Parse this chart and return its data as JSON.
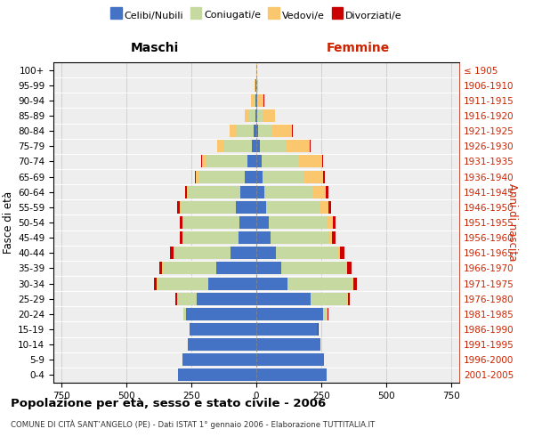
{
  "age_groups": [
    "0-4",
    "5-9",
    "10-14",
    "15-19",
    "20-24",
    "25-29",
    "30-34",
    "35-39",
    "40-44",
    "45-49",
    "50-54",
    "55-59",
    "60-64",
    "65-69",
    "70-74",
    "75-79",
    "80-84",
    "85-89",
    "90-94",
    "95-99",
    "100+"
  ],
  "birth_years": [
    "2001-2005",
    "1996-2000",
    "1991-1995",
    "1986-1990",
    "1981-1985",
    "1976-1980",
    "1971-1975",
    "1966-1970",
    "1961-1965",
    "1956-1960",
    "1951-1955",
    "1946-1950",
    "1941-1945",
    "1936-1940",
    "1931-1935",
    "1926-1930",
    "1921-1925",
    "1916-1920",
    "1911-1915",
    "1906-1910",
    "≤ 1905"
  ],
  "male_celibi": [
    300,
    285,
    265,
    255,
    270,
    230,
    185,
    155,
    100,
    70,
    65,
    80,
    60,
    45,
    35,
    18,
    10,
    5,
    3,
    2,
    1
  ],
  "male_coniugati": [
    0,
    0,
    0,
    2,
    10,
    75,
    195,
    205,
    215,
    210,
    215,
    210,
    200,
    175,
    155,
    110,
    65,
    22,
    8,
    2,
    0
  ],
  "male_vedovi": [
    0,
    0,
    0,
    0,
    0,
    0,
    2,
    2,
    2,
    3,
    4,
    5,
    8,
    12,
    18,
    22,
    28,
    18,
    8,
    2,
    0
  ],
  "male_divorziati": [
    0,
    0,
    0,
    0,
    2,
    5,
    10,
    12,
    15,
    12,
    10,
    8,
    5,
    5,
    3,
    2,
    1,
    0,
    0,
    0,
    0
  ],
  "female_celibi": [
    270,
    260,
    245,
    235,
    255,
    210,
    120,
    95,
    75,
    55,
    48,
    38,
    30,
    25,
    20,
    15,
    8,
    3,
    2,
    1,
    1
  ],
  "female_coniugati": [
    0,
    0,
    0,
    2,
    18,
    140,
    250,
    250,
    240,
    225,
    225,
    210,
    185,
    160,
    140,
    98,
    52,
    20,
    5,
    2,
    0
  ],
  "female_vedovi": [
    0,
    0,
    0,
    0,
    0,
    2,
    3,
    5,
    8,
    12,
    20,
    30,
    52,
    72,
    92,
    92,
    78,
    48,
    22,
    5,
    1
  ],
  "female_divorziati": [
    0,
    0,
    0,
    1,
    3,
    8,
    12,
    15,
    15,
    12,
    12,
    10,
    10,
    5,
    5,
    5,
    3,
    2,
    1,
    0,
    0
  ],
  "colors": {
    "celibi": "#4472c4",
    "coniugati": "#c5d9a0",
    "vedovi": "#fac76e",
    "divorziati": "#cc0000"
  },
  "xlim": 780,
  "title": "Popolazione per età, sesso e stato civile - 2006",
  "subtitle": "COMUNE DI CITÀ SANT’ANGELO (PE) - Dati ISTAT 1° gennaio 2006 - Elaborazione TUTTITALIA.IT",
  "xlabel_left": "Maschi",
  "xlabel_right": "Femmine",
  "ylabel_left": "Fasce di età",
  "ylabel_right": "Anni di nascita",
  "plot_bg_color": "#eeeeee",
  "background_color": "#ffffff",
  "grid_color": "#cccccc"
}
